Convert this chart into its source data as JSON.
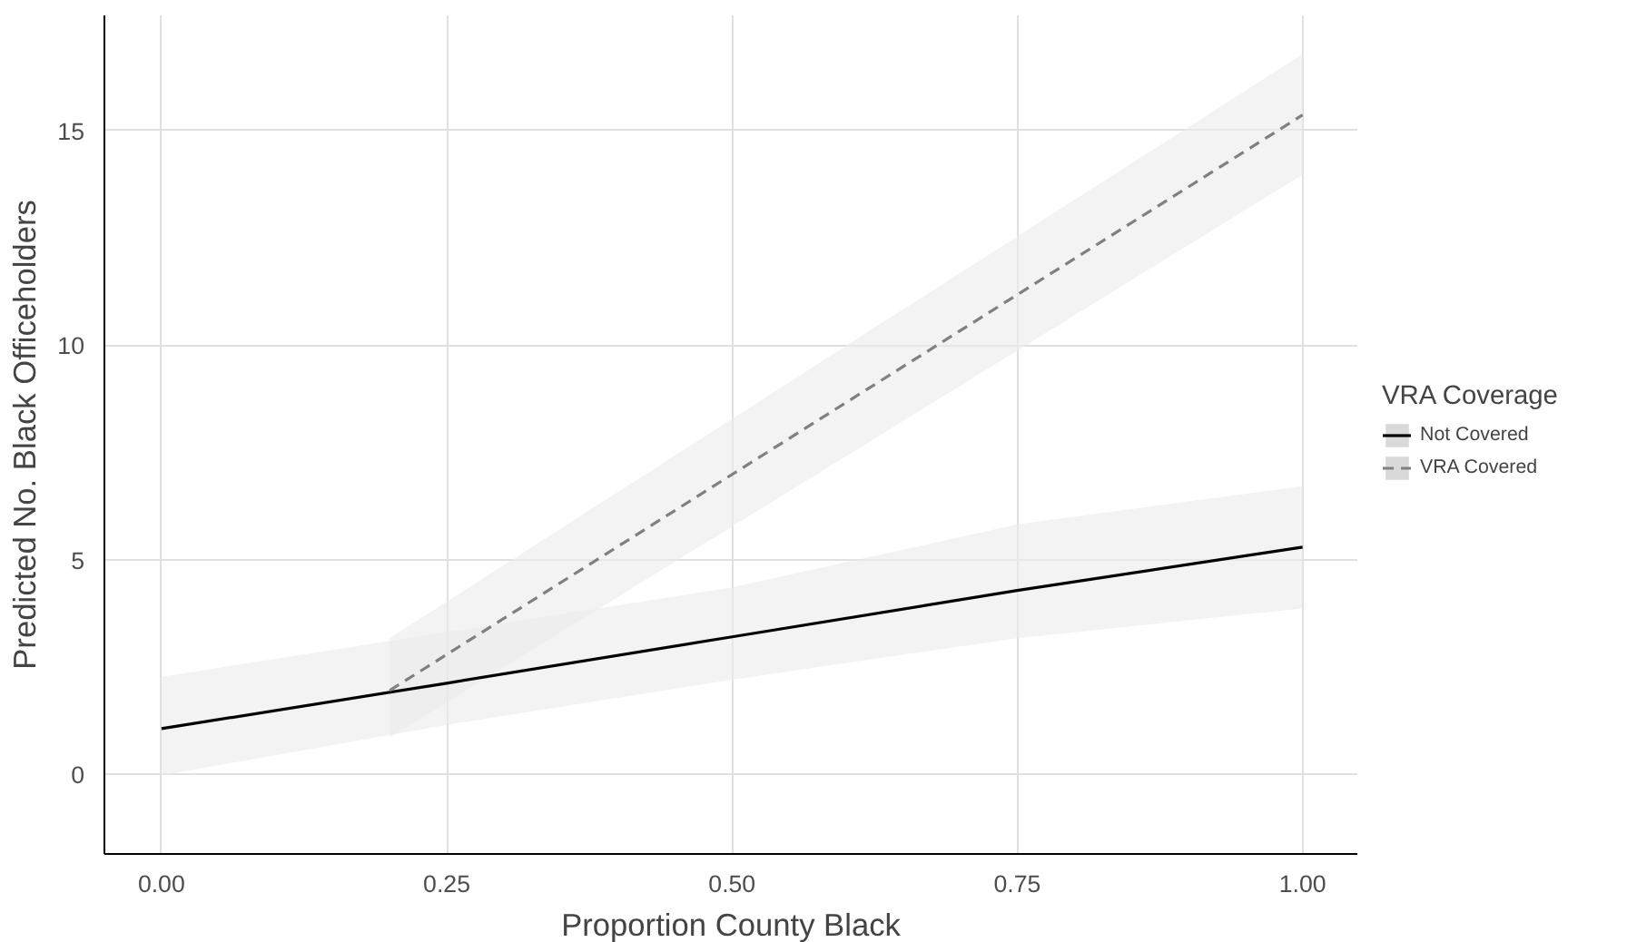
{
  "chart_data": {
    "type": "line",
    "xlabel": "Proportion County Black",
    "ylabel": "Predicted No. Black Officeholders",
    "legend_title": "VRA Coverage",
    "legend": "right",
    "grid": true,
    "xlim": [
      -0.05,
      1.048
    ],
    "ylim": [
      -1.86,
      17.68
    ],
    "xticks": [
      {
        "value": 0,
        "label": "0.00"
      },
      {
        "value": 0.25,
        "label": "0.25"
      },
      {
        "value": 0.5,
        "label": "0.50"
      },
      {
        "value": 0.75,
        "label": "0.75"
      },
      {
        "value": 1,
        "label": "1.00"
      }
    ],
    "yticks": [
      0,
      5,
      10,
      15
    ],
    "series": [
      {
        "name": "Not Covered",
        "color": "#000000",
        "line_style": "solid",
        "x": [
          0,
          0.25,
          0.5,
          0.75,
          1
        ],
        "values": [
          1.06,
          2.12,
          3.2,
          4.28,
          5.29
        ],
        "lower": [
          -0.03,
          1.15,
          2.2,
          3.17,
          3.86
        ],
        "upper": [
          2.27,
          3.31,
          4.35,
          5.82,
          6.71
        ]
      },
      {
        "name": "VRA Covered",
        "color": "#808080",
        "line_style": "dashed",
        "x": [
          0.2,
          0.6,
          1
        ],
        "values": [
          1.95,
          8.66,
          15.36
        ],
        "lower": [
          0.85,
          7.41,
          13.97
        ],
        "upper": [
          3.17,
          9.98,
          16.78
        ]
      }
    ]
  }
}
